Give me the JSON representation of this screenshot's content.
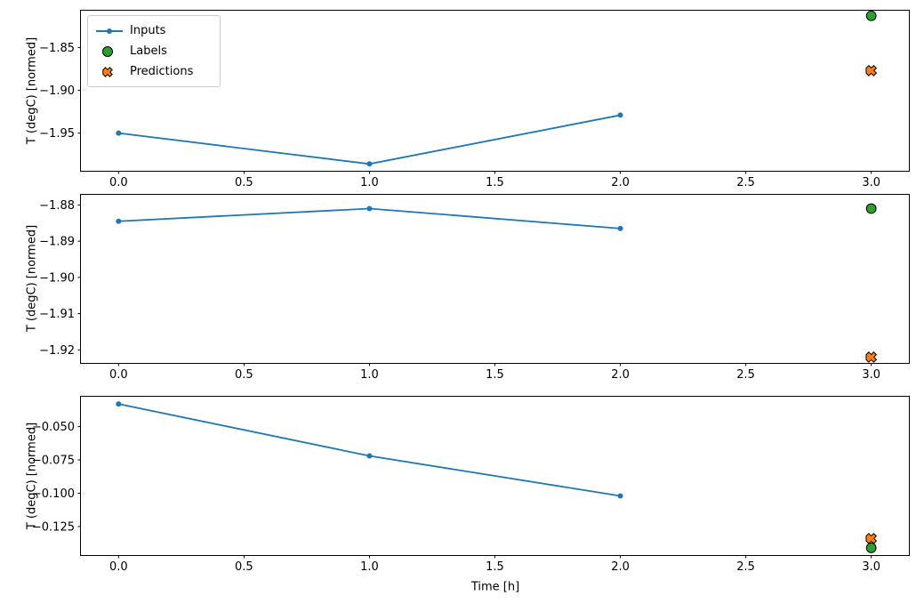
{
  "figure": {
    "background": "#ffffff",
    "axis_color": "#000000",
    "xlabel": "Time [h]",
    "ylabel": "T (degC) [normed]",
    "legend": {
      "position": "upper-left",
      "items": [
        {
          "label": "Inputs",
          "marker": "line-dot",
          "color": "#1f77b4"
        },
        {
          "label": "Labels",
          "marker": "circle",
          "color": "#2ca02c",
          "edge_color": "#000000"
        },
        {
          "label": "Predictions",
          "marker": "x",
          "color": "#ff7f0e",
          "edge_color": "#000000"
        }
      ]
    }
  },
  "chart_data": [
    {
      "type": "line",
      "title": "",
      "xlabel": "",
      "ylabel": "T (degC) [normed]",
      "xlim": [
        -0.15,
        3.15
      ],
      "ylim": [
        -1.994,
        -1.807
      ],
      "grid": false,
      "x_ticks": [
        0.0,
        0.5,
        1.0,
        1.5,
        2.0,
        2.5,
        3.0
      ],
      "x_tick_labels": [
        "0.0",
        "0.5",
        "1.0",
        "1.5",
        "2.0",
        "2.5",
        "3.0"
      ],
      "y_ticks": [
        -1.85,
        -1.9,
        -1.95
      ],
      "y_tick_labels": [
        "−1.85",
        "−1.90",
        "−1.95"
      ],
      "series": [
        {
          "name": "Inputs",
          "type": "line+marker",
          "color": "#1f77b4",
          "x": [
            0,
            1,
            2
          ],
          "y": [
            -1.95,
            -1.986,
            -1.929
          ]
        },
        {
          "name": "Labels",
          "type": "scatter-circle",
          "color": "#2ca02c",
          "x": [
            3
          ],
          "y": [
            -1.813
          ]
        },
        {
          "name": "Predictions",
          "type": "scatter-x",
          "color": "#ff7f0e",
          "x": [
            3
          ],
          "y": [
            -1.877
          ]
        }
      ]
    },
    {
      "type": "line",
      "title": "",
      "xlabel": "",
      "ylabel": "T (degC) [normed]",
      "xlim": [
        -0.15,
        3.15
      ],
      "ylim": [
        -1.9236,
        -1.8772
      ],
      "grid": false,
      "x_ticks": [
        0.0,
        0.5,
        1.0,
        1.5,
        2.0,
        2.5,
        3.0
      ],
      "x_tick_labels": [
        "0.0",
        "0.5",
        "1.0",
        "1.5",
        "2.0",
        "2.5",
        "3.0"
      ],
      "y_ticks": [
        -1.88,
        -1.89,
        -1.9,
        -1.91,
        -1.92
      ],
      "y_tick_labels": [
        "−1.88",
        "−1.89",
        "−1.90",
        "−1.91",
        "−1.92"
      ],
      "series": [
        {
          "name": "Inputs",
          "type": "line+marker",
          "color": "#1f77b4",
          "x": [
            0,
            1,
            2
          ],
          "y": [
            -1.8845,
            -1.881,
            -1.8865
          ]
        },
        {
          "name": "Labels",
          "type": "scatter-circle",
          "color": "#2ca02c",
          "x": [
            3
          ],
          "y": [
            -1.881
          ]
        },
        {
          "name": "Predictions",
          "type": "scatter-x",
          "color": "#ff7f0e",
          "x": [
            3
          ],
          "y": [
            -1.922
          ]
        }
      ]
    },
    {
      "type": "line",
      "title": "",
      "xlabel": "Time [h]",
      "ylabel": "T (degC) [normed]",
      "xlim": [
        -0.15,
        3.15
      ],
      "ylim": [
        -0.1464,
        -0.0276
      ],
      "grid": false,
      "x_ticks": [
        0.0,
        0.5,
        1.0,
        1.5,
        2.0,
        2.5,
        3.0
      ],
      "x_tick_labels": [
        "0.0",
        "0.5",
        "1.0",
        "1.5",
        "2.0",
        "2.5",
        "3.0"
      ],
      "y_ticks": [
        -0.05,
        -0.075,
        -0.1,
        -0.125
      ],
      "y_tick_labels": [
        "−0.050",
        "−0.075",
        "−0.100",
        "−0.125"
      ],
      "series": [
        {
          "name": "Inputs",
          "type": "line+marker",
          "color": "#1f77b4",
          "x": [
            0,
            1,
            2
          ],
          "y": [
            -0.033,
            -0.072,
            -0.102
          ]
        },
        {
          "name": "Labels",
          "type": "scatter-circle",
          "color": "#2ca02c",
          "x": [
            3
          ],
          "y": [
            -0.141
          ]
        },
        {
          "name": "Predictions",
          "type": "scatter-x",
          "color": "#ff7f0e",
          "x": [
            3
          ],
          "y": [
            -0.134
          ]
        }
      ]
    }
  ]
}
